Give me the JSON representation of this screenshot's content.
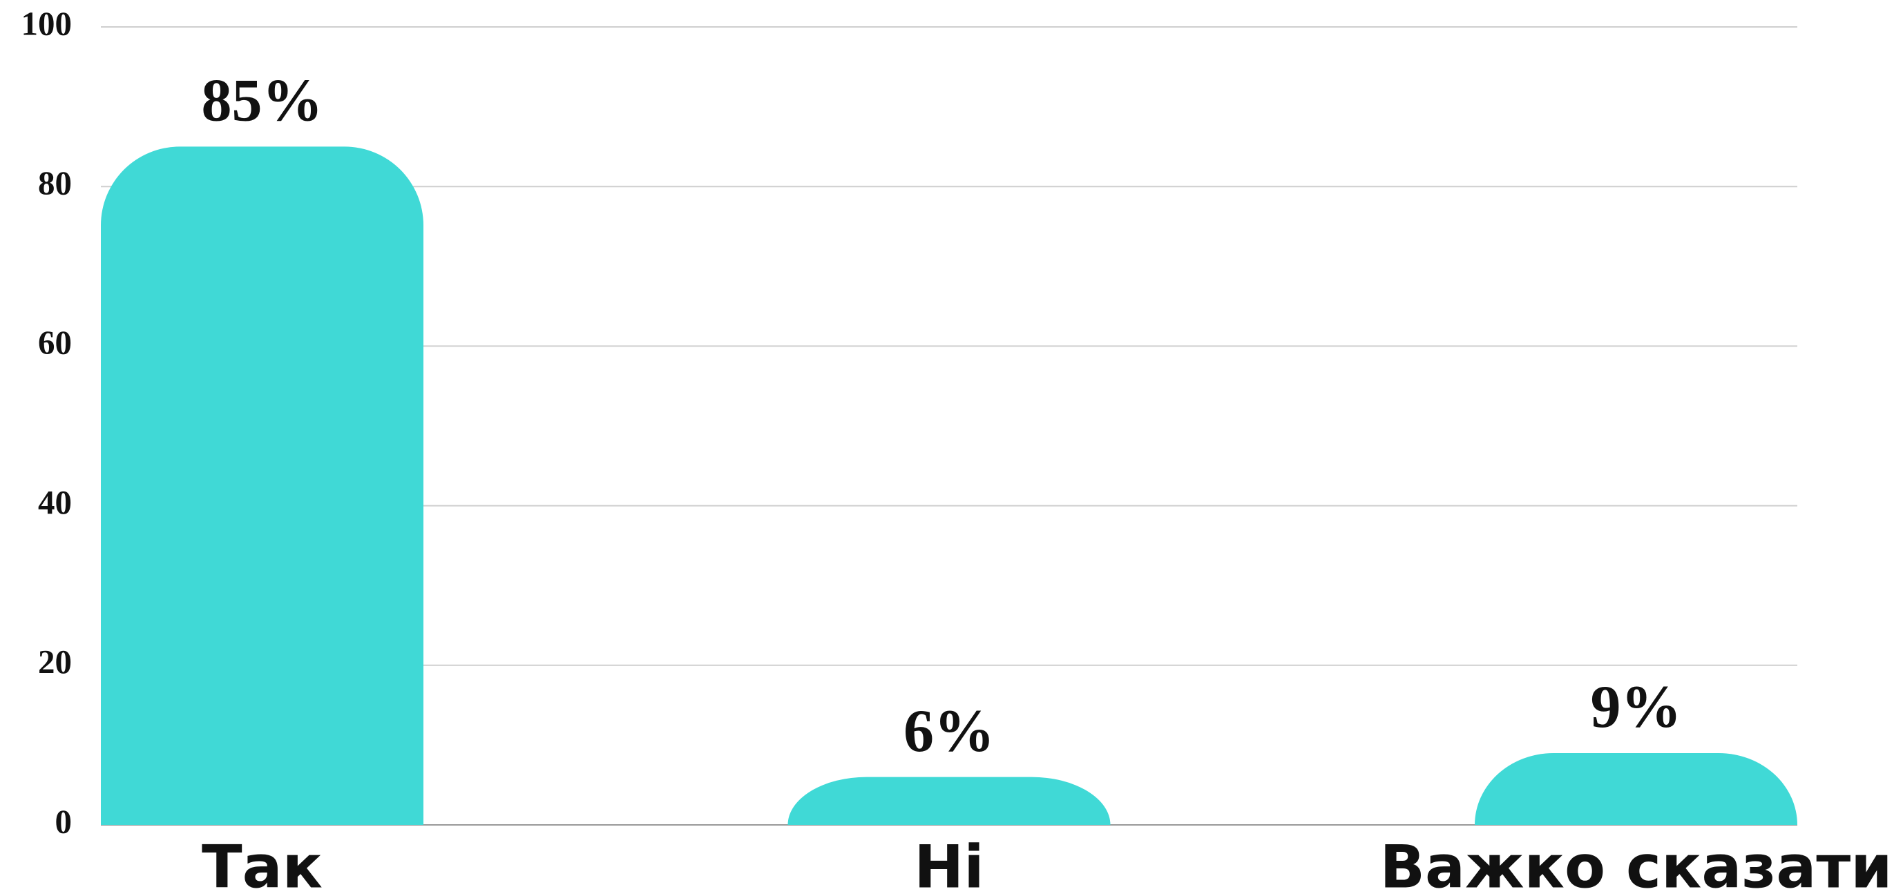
{
  "chart_data": {
    "type": "bar",
    "categories": [
      "Так",
      "Ні",
      "Важко сказати"
    ],
    "values": [
      85,
      6,
      9
    ],
    "value_labels": [
      "85%",
      "6%",
      "9%"
    ],
    "color": "#40d9d6",
    "ylim": [
      0,
      100
    ],
    "yticks": [
      0,
      20,
      40,
      60,
      80,
      100
    ],
    "grid": true
  }
}
